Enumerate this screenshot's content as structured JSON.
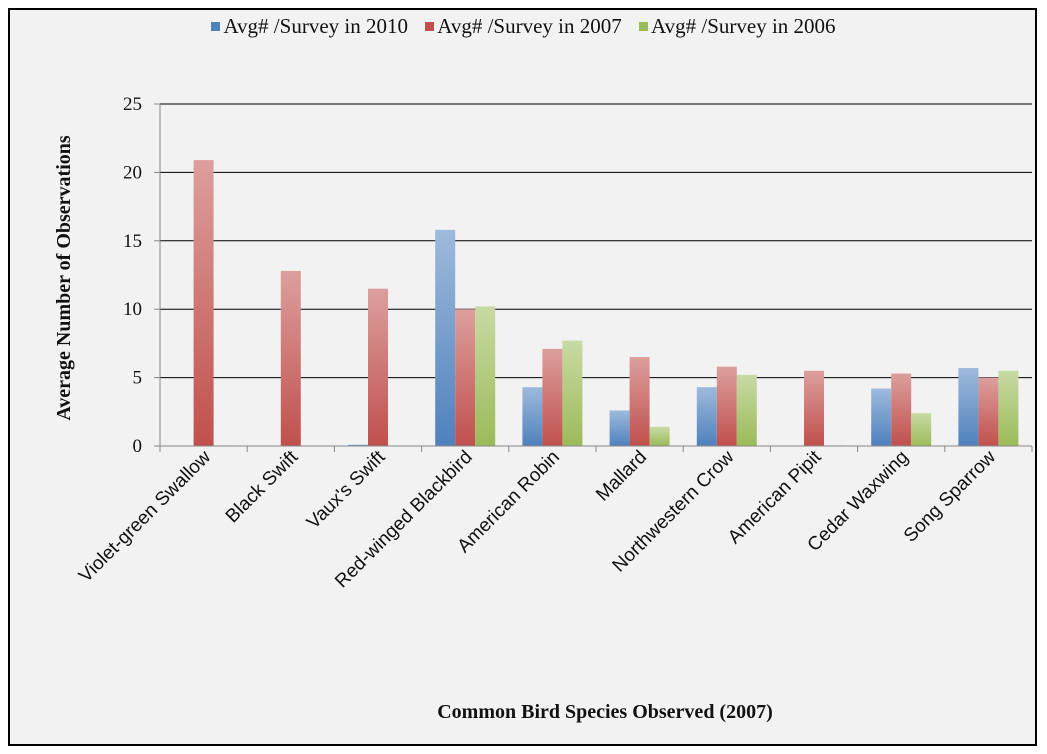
{
  "chart_data": {
    "type": "bar",
    "title": "",
    "xlabel": "Common Bird Species Observed (2007)",
    "ylabel": "Average Number of Observations",
    "ylim": [
      0,
      25
    ],
    "yticks": [
      0,
      5,
      10,
      15,
      20,
      25
    ],
    "grid": true,
    "legend_position": "top",
    "categories": [
      "Violet-green Swallow",
      "Black Swift",
      "Vaux's Swift",
      "Red-winged Blackbird",
      "American Robin",
      "Mallard",
      "Northwestern Crow",
      "American Pipit",
      "Cedar Waxwing",
      "Song Sparrow"
    ],
    "series": [
      {
        "name": "Avg# /Survey in 2010",
        "color": "#4f81bd",
        "values": [
          0,
          0,
          0.1,
          15.8,
          4.3,
          2.6,
          4.3,
          0,
          4.2,
          5.7
        ]
      },
      {
        "name": "Avg# /Survey in 2007",
        "color": "#c0504d",
        "values": [
          20.9,
          12.8,
          11.5,
          10.0,
          7.1,
          6.5,
          5.8,
          5.5,
          5.3,
          5.0
        ]
      },
      {
        "name": "Avg# /Survey in 2006",
        "color": "#9bbb59",
        "values": [
          0.05,
          0,
          0,
          10.2,
          7.7,
          1.4,
          5.2,
          0.05,
          2.4,
          5.5
        ]
      }
    ]
  }
}
